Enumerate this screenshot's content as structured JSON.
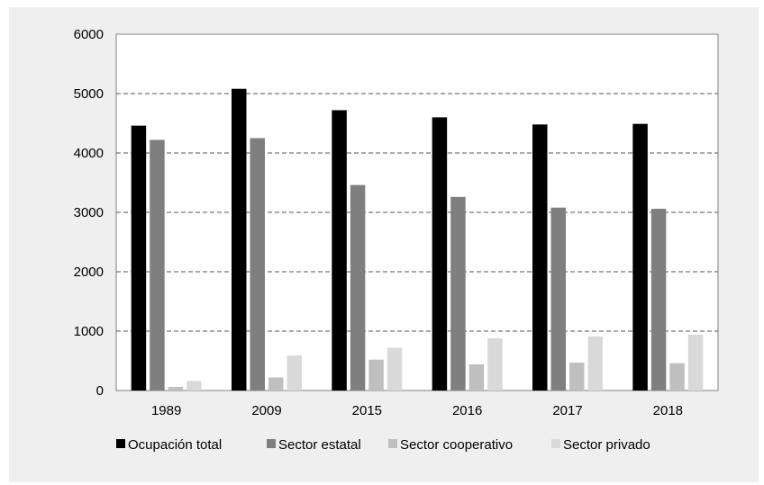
{
  "chart_data": {
    "type": "bar",
    "categories": [
      "1989",
      "2009",
      "2015",
      "2016",
      "2017",
      "2018"
    ],
    "series": [
      {
        "name": "Ocupación total",
        "color": "#000000",
        "values": [
          4460,
          5080,
          4720,
          4600,
          4480,
          4490
        ]
      },
      {
        "name": "Sector estatal",
        "color": "#7f7f7f",
        "values": [
          4220,
          4250,
          3460,
          3260,
          3080,
          3060
        ]
      },
      {
        "name": "Sector cooperativo",
        "color": "#bfbfbf",
        "values": [
          60,
          220,
          520,
          440,
          470,
          460
        ]
      },
      {
        "name": "Sector privado",
        "color": "#d9d9d9",
        "values": [
          160,
          590,
          720,
          880,
          910,
          940
        ]
      }
    ],
    "ylim": [
      0,
      6000
    ],
    "yticks": [
      0,
      1000,
      2000,
      3000,
      4000,
      5000,
      6000
    ],
    "ytick_labels": [
      "0",
      "1000",
      "2000",
      "3000",
      "4000",
      "5000",
      "6000"
    ],
    "grid": "horizontal dashed",
    "legend_position": "bottom"
  }
}
